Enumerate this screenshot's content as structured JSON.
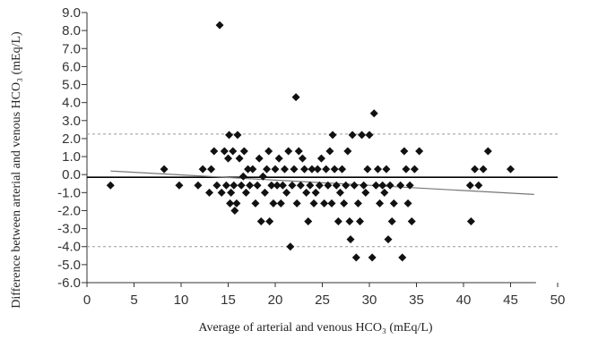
{
  "chart_data": {
    "type": "scatter",
    "title": "",
    "xlabel": "Average of arterial and venous HCO₃ (mEq/L)",
    "ylabel": "Difference between arterial and venous HCO₃ (mEq/L)",
    "xlim": [
      0,
      50
    ],
    "ylim": [
      -6,
      9
    ],
    "x_ticks": [
      "0",
      "5",
      "10",
      "15",
      "20",
      "25",
      "30",
      "35",
      "40",
      "45",
      "50"
    ],
    "y_ticks": [
      "9.0",
      "8.0",
      "7.0",
      "6.0",
      "5.0",
      "4.0",
      "3.0",
      "2.0",
      "1.0",
      "0.0",
      "-1.0",
      "-2.0",
      "-3.0",
      "-4.0",
      "-5.0",
      "-6.0"
    ],
    "grid": false,
    "mean_difference": -0.15,
    "upper_limit_of_agreement": 2.25,
    "lower_limit_of_agreement": -4.0,
    "regression_line": {
      "x": [
        2.5,
        47.5
      ],
      "y": [
        0.2,
        -1.1
      ]
    },
    "colors": {
      "points": "#111111",
      "mean_line": "#000000",
      "limit_lines": "#999999",
      "regression_line": "#777777",
      "axes": "#333333"
    },
    "points": [
      [
        2.5,
        -0.6
      ],
      [
        8.2,
        0.3
      ],
      [
        9.8,
        -0.6
      ],
      [
        11.8,
        -0.6
      ],
      [
        12.3,
        0.3
      ],
      [
        13.0,
        -1.0
      ],
      [
        13.2,
        0.3
      ],
      [
        13.5,
        1.3
      ],
      [
        13.8,
        -0.6
      ],
      [
        14.1,
        8.3
      ],
      [
        14.3,
        -1.0
      ],
      [
        14.6,
        1.3
      ],
      [
        14.8,
        -0.6
      ],
      [
        15.0,
        0.9
      ],
      [
        15.1,
        2.2
      ],
      [
        15.2,
        -1.6
      ],
      [
        15.3,
        -1.0
      ],
      [
        15.5,
        1.3
      ],
      [
        15.6,
        -0.6
      ],
      [
        15.7,
        -2.0
      ],
      [
        15.9,
        -1.6
      ],
      [
        16.0,
        2.2
      ],
      [
        16.2,
        0.9
      ],
      [
        16.4,
        -0.6
      ],
      [
        16.6,
        -0.1
      ],
      [
        16.7,
        1.3
      ],
      [
        16.9,
        -1.0
      ],
      [
        17.1,
        0.3
      ],
      [
        17.3,
        -0.6
      ],
      [
        17.6,
        0.3
      ],
      [
        17.9,
        -1.6
      ],
      [
        18.1,
        -0.6
      ],
      [
        18.3,
        0.9
      ],
      [
        18.5,
        -2.6
      ],
      [
        18.7,
        -0.1
      ],
      [
        18.9,
        -1.0
      ],
      [
        19.1,
        0.3
      ],
      [
        19.3,
        1.3
      ],
      [
        19.4,
        -2.6
      ],
      [
        19.6,
        -0.6
      ],
      [
        19.8,
        -1.6
      ],
      [
        20.0,
        0.3
      ],
      [
        20.2,
        -0.6
      ],
      [
        20.4,
        0.9
      ],
      [
        20.6,
        -1.6
      ],
      [
        20.8,
        -0.6
      ],
      [
        21.0,
        0.3
      ],
      [
        21.2,
        -1.0
      ],
      [
        21.4,
        1.3
      ],
      [
        21.6,
        -4.0
      ],
      [
        21.8,
        -0.6
      ],
      [
        22.0,
        0.3
      ],
      [
        22.2,
        4.3
      ],
      [
        22.3,
        -1.6
      ],
      [
        22.5,
        1.3
      ],
      [
        22.7,
        -0.6
      ],
      [
        22.9,
        0.9
      ],
      [
        23.1,
        0.3
      ],
      [
        23.3,
        -1.0
      ],
      [
        23.5,
        -2.6
      ],
      [
        23.7,
        -0.6
      ],
      [
        23.9,
        0.3
      ],
      [
        24.1,
        -1.6
      ],
      [
        24.3,
        -1.0
      ],
      [
        24.5,
        0.3
      ],
      [
        24.7,
        -0.6
      ],
      [
        24.9,
        0.9
      ],
      [
        25.2,
        -1.6
      ],
      [
        25.4,
        0.3
      ],
      [
        25.6,
        -0.6
      ],
      [
        25.8,
        1.3
      ],
      [
        26.0,
        -1.6
      ],
      [
        26.1,
        2.2
      ],
      [
        26.3,
        0.3
      ],
      [
        26.5,
        -0.6
      ],
      [
        26.7,
        -2.6
      ],
      [
        26.9,
        -1.0
      ],
      [
        27.1,
        0.3
      ],
      [
        27.3,
        -1.6
      ],
      [
        27.5,
        -0.6
      ],
      [
        27.7,
        1.3
      ],
      [
        27.9,
        -2.6
      ],
      [
        28.0,
        -3.6
      ],
      [
        28.2,
        2.2
      ],
      [
        28.4,
        -0.6
      ],
      [
        28.6,
        -4.6
      ],
      [
        28.8,
        -1.6
      ],
      [
        29.0,
        -2.6
      ],
      [
        29.2,
        2.2
      ],
      [
        29.4,
        -0.6
      ],
      [
        29.6,
        -1.0
      ],
      [
        29.8,
        0.3
      ],
      [
        30.0,
        2.2
      ],
      [
        30.3,
        -4.6
      ],
      [
        30.5,
        3.4
      ],
      [
        30.7,
        -0.6
      ],
      [
        30.9,
        0.3
      ],
      [
        31.1,
        -1.6
      ],
      [
        31.4,
        -0.6
      ],
      [
        31.6,
        -1.0
      ],
      [
        31.8,
        0.3
      ],
      [
        32.0,
        -3.6
      ],
      [
        32.2,
        -0.6
      ],
      [
        32.4,
        -2.6
      ],
      [
        32.6,
        -1.6
      ],
      [
        33.3,
        -0.6
      ],
      [
        33.5,
        -4.6
      ],
      [
        33.7,
        1.3
      ],
      [
        33.9,
        0.3
      ],
      [
        34.1,
        -1.6
      ],
      [
        34.3,
        -0.6
      ],
      [
        34.5,
        -2.6
      ],
      [
        34.8,
        0.3
      ],
      [
        35.3,
        1.3
      ],
      [
        40.7,
        -0.6
      ],
      [
        40.8,
        -2.6
      ],
      [
        41.2,
        0.3
      ],
      [
        41.6,
        -0.6
      ],
      [
        42.1,
        0.3
      ],
      [
        42.6,
        1.3
      ],
      [
        45.0,
        0.3
      ]
    ]
  }
}
